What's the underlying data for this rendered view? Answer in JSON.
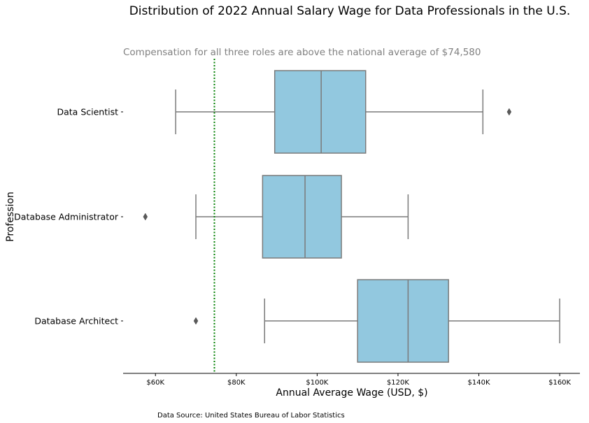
{
  "chart_data": {
    "type": "boxplot",
    "orientation": "horizontal",
    "title": "Distribution of 2022 Annual Salary Wage for Data Professionals in the U.S.",
    "subtitle": "Compensation for all three roles are above the national average of $74,580",
    "xlabel": "Annual Average Wage (USD, $)",
    "ylabel": "Profession",
    "xlim": [
      52000,
      165000
    ],
    "xticks": [
      60000,
      80000,
      100000,
      120000,
      140000,
      160000
    ],
    "xtick_labels": [
      "$60K",
      "$80K",
      "$100K",
      "$120K",
      "$140K",
      "$160K"
    ],
    "box_color": "#92c8df",
    "line_color": "#7a7a7a",
    "reference_line": {
      "value": 74580,
      "color": "#008000",
      "style": "dotted"
    },
    "categories": [
      "Data Scientist",
      "Database Administrator",
      "Database Architect"
    ],
    "boxes": [
      {
        "name": "Data Scientist",
        "whisker_low": 65000,
        "q1": 89500,
        "median": 101000,
        "q3": 112000,
        "whisker_high": 141000,
        "outliers": [
          147500
        ]
      },
      {
        "name": "Database Administrator",
        "whisker_low": 70000,
        "q1": 86500,
        "median": 97000,
        "q3": 106000,
        "whisker_high": 122500,
        "outliers": [
          57500
        ]
      },
      {
        "name": "Database Architect",
        "whisker_low": 87000,
        "q1": 110000,
        "median": 122500,
        "q3": 132500,
        "whisker_high": 160000,
        "outliers": [
          70000
        ]
      }
    ],
    "spines": "bottom-only",
    "grid": false
  },
  "footer": {
    "source": "Data Source: United States Bureau of Labor Statistics"
  }
}
